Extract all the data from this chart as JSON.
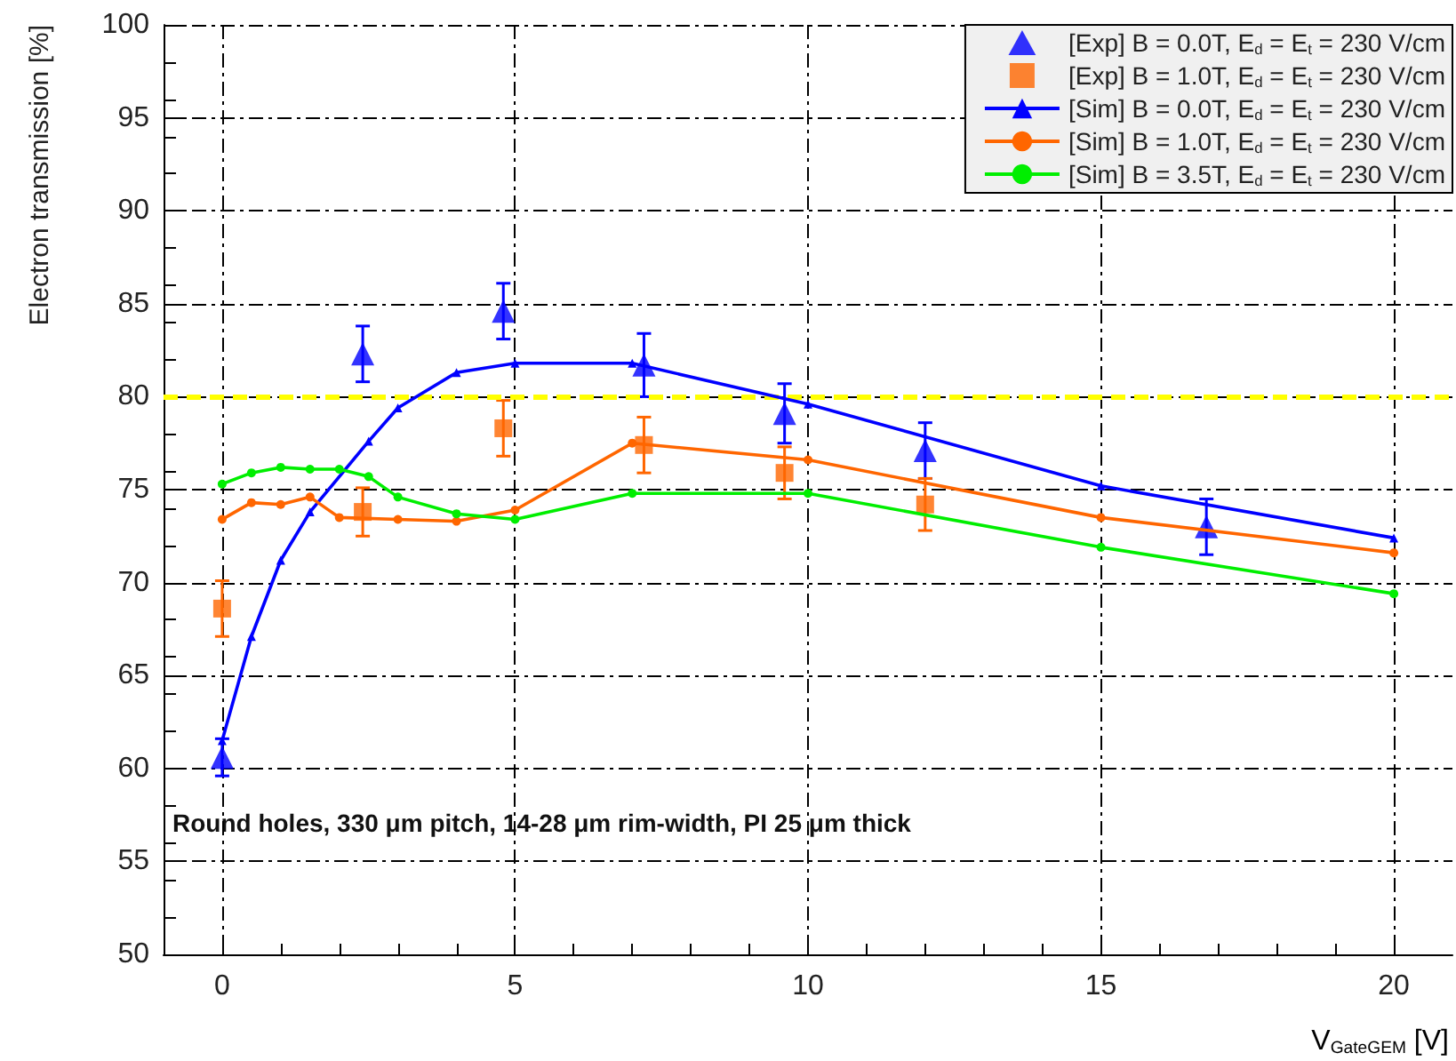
{
  "chart_data": {
    "type": "line",
    "xlabel": "V$_{GateGEM}$ [V]",
    "ylabel": "Electron transmission [%]",
    "xlim": [
      -1,
      21
    ],
    "xticks": [
      0,
      5,
      10,
      15,
      20
    ],
    "ylim": [
      50,
      100
    ],
    "yticks": [
      50,
      55,
      60,
      65,
      70,
      75,
      80,
      85,
      90,
      95,
      100
    ],
    "grid": true,
    "legend": "top right",
    "annotations": [
      "Round holes, 330 μm pitch, 14-28 μm rim-width, PI 25 μm thick"
    ],
    "ref_lines": [
      {
        "axis": "y",
        "value": 80,
        "color": "#ffff00",
        "line_style": "dashed"
      }
    ],
    "series": [
      {
        "name": "[Exp] B = 0.0T, E$_{d}$ = E$_{t}$ = 230 V/cm",
        "type": "scatter",
        "marker": "triangle",
        "color": "#0000ff",
        "x": [
          0,
          2.4,
          4.8,
          7.2,
          9.6,
          12,
          16.8
        ],
        "values": [
          60.6,
          82.3,
          84.6,
          81.7,
          79.1,
          77.1,
          73.0
        ],
        "errors": [
          1.0,
          1.5,
          1.5,
          1.7,
          1.6,
          1.5,
          1.5
        ]
      },
      {
        "name": "[Exp] B = 1.0T, E$_{d}$ = E$_{t}$ = 230 V/cm",
        "type": "scatter",
        "marker": "square",
        "color": "#ff6600",
        "x": [
          0,
          2.4,
          4.8,
          7.2,
          9.6,
          12
        ],
        "values": [
          68.6,
          73.8,
          78.3,
          77.4,
          75.9,
          74.2
        ],
        "errors": [
          1.5,
          1.3,
          1.5,
          1.5,
          1.4,
          1.4
        ]
      },
      {
        "name": "[Sim] B = 0.0T, E$_{d}$ = E$_{t}$ = 230 V/cm",
        "type": "line",
        "marker": "triangle",
        "color": "#0000ff",
        "x": [
          0,
          0.5,
          1,
          1.5,
          2.5,
          3,
          4,
          5,
          7,
          10,
          15,
          20
        ],
        "values": [
          61.5,
          67.1,
          71.2,
          73.8,
          77.6,
          79.4,
          81.3,
          81.8,
          81.8,
          79.6,
          75.2,
          72.4
        ]
      },
      {
        "name": "[Sim] B = 1.0T, E$_{d}$ = E$_{t}$ = 230 V/cm",
        "type": "line",
        "marker": "circle",
        "color": "#ff6600",
        "x": [
          0,
          0.5,
          1,
          1.5,
          2,
          3,
          4,
          5,
          7,
          10,
          15,
          20
        ],
        "values": [
          73.4,
          74.3,
          74.2,
          74.6,
          73.5,
          73.4,
          73.3,
          73.9,
          77.5,
          76.6,
          73.5,
          71.6
        ]
      },
      {
        "name": "[Sim] B = 3.5T, E$_{d}$ = E$_{t}$ = 230 V/cm",
        "type": "line",
        "marker": "circle",
        "color": "#00ee00",
        "x": [
          0,
          0.5,
          1,
          1.5,
          2,
          2.5,
          3,
          4,
          5,
          7,
          10,
          15,
          20
        ],
        "values": [
          75.3,
          75.9,
          76.2,
          76.1,
          76.1,
          75.7,
          74.6,
          73.7,
          73.4,
          74.8,
          74.8,
          71.9,
          69.4
        ]
      }
    ]
  }
}
